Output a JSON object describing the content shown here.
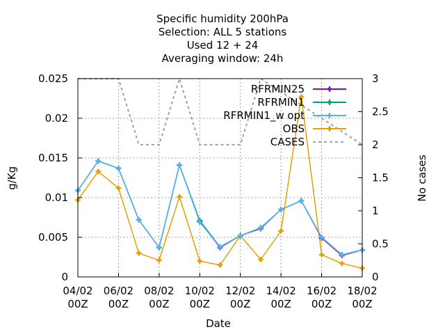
{
  "chart_data": {
    "type": "line",
    "title_lines": [
      "Specific humidity 200hPa",
      "Selection: ALL      5 stations",
      "Used  12 + 24",
      "Averaging window: 24h"
    ],
    "xlabel": "Date",
    "ylabel": "g/Kg",
    "y2label": "No cases",
    "x_ticks": [
      {
        "x": 0,
        "line1": "04/02",
        "line2": "00Z"
      },
      {
        "x": 2,
        "line1": "06/02",
        "line2": "00Z"
      },
      {
        "x": 4,
        "line1": "08/02",
        "line2": "00Z"
      },
      {
        "x": 6,
        "line1": "10/02",
        "line2": "00Z"
      },
      {
        "x": 8,
        "line1": "12/02",
        "line2": "00Z"
      },
      {
        "x": 10,
        "line1": "14/02",
        "line2": "00Z"
      },
      {
        "x": 12,
        "line1": "16/02",
        "line2": "00Z"
      },
      {
        "x": 14,
        "line1": "18/02",
        "line2": "00Z"
      }
    ],
    "xlim": [
      0,
      14
    ],
    "ylim": [
      0,
      0.025
    ],
    "y_ticks": [
      {
        "v": 0,
        "label": "0"
      },
      {
        "v": 0.005,
        "label": "0.005"
      },
      {
        "v": 0.01,
        "label": "0.01"
      },
      {
        "v": 0.015,
        "label": "0.015"
      },
      {
        "v": 0.02,
        "label": "0.02"
      },
      {
        "v": 0.025,
        "label": "0.025"
      }
    ],
    "y2lim": [
      0,
      3
    ],
    "y2_ticks": [
      {
        "v": 0,
        "label": "0"
      },
      {
        "v": 0.5,
        "label": "0.5"
      },
      {
        "v": 1,
        "label": "1"
      },
      {
        "v": 1.5,
        "label": "1.5"
      },
      {
        "v": 2,
        "label": "2"
      },
      {
        "v": 2.5,
        "label": "2.5"
      },
      {
        "v": 3,
        "label": "3"
      }
    ],
    "grid": true,
    "legend_position": "top-right",
    "x": [
      0,
      1,
      2,
      3,
      4,
      5,
      6,
      7,
      8,
      9,
      10,
      11,
      12,
      13,
      14
    ],
    "series": [
      {
        "name": "RFRMIN25",
        "color": "#9400d3",
        "axis": "y1",
        "marker": "plus",
        "values": [
          0.0109,
          0.0146,
          0.0137,
          0.0072,
          0.0037,
          0.0141,
          0.007,
          0.0037,
          0.0052,
          0.0061,
          0.0085,
          0.0096,
          0.0049,
          0.0027,
          0.0034
        ]
      },
      {
        "name": "RFRMIN1",
        "color": "#009e73",
        "axis": "y1",
        "marker": "plus",
        "values": [
          0.0109,
          0.0146,
          0.0137,
          0.0072,
          0.0037,
          0.0141,
          0.0071,
          0.0038,
          0.0052,
          0.0062,
          0.0085,
          0.0096,
          0.005,
          0.0028,
          0.0034
        ]
      },
      {
        "name": "RFRMIN1_w_opt",
        "color": "#56b4e9",
        "axis": "y1",
        "marker": "plus",
        "values": [
          0.0109,
          0.0146,
          0.0137,
          0.0072,
          0.0037,
          0.0141,
          0.0069,
          0.0038,
          0.0052,
          0.0062,
          0.0085,
          0.0096,
          0.005,
          0.0028,
          0.0034
        ]
      },
      {
        "name": "OBS",
        "color": "#e69f00",
        "axis": "y1",
        "marker": "plus",
        "values": [
          0.0097,
          0.0133,
          0.0112,
          0.003,
          0.0021,
          0.0101,
          0.002,
          0.0015,
          0.0052,
          0.0022,
          0.0058,
          0.0227,
          0.0028,
          0.0017,
          0.0011
        ]
      },
      {
        "name": "CASES",
        "color": "#a0a0a0",
        "axis": "y2",
        "marker": "none",
        "dashed": true,
        "x": [
          0,
          2,
          3,
          4,
          5,
          6,
          8,
          9,
          14
        ],
        "values": [
          3,
          3,
          2,
          2,
          3,
          2,
          2,
          3,
          2
        ]
      }
    ],
    "legend": [
      {
        "label": "RFRMIN25",
        "series": 0
      },
      {
        "label": "RFRMIN1",
        "series": 1
      },
      {
        "label": "RFRMIN1_w opt",
        "series": 2
      },
      {
        "label": "OBS",
        "series": 3
      },
      {
        "label": "CASES",
        "series": 4
      }
    ]
  }
}
